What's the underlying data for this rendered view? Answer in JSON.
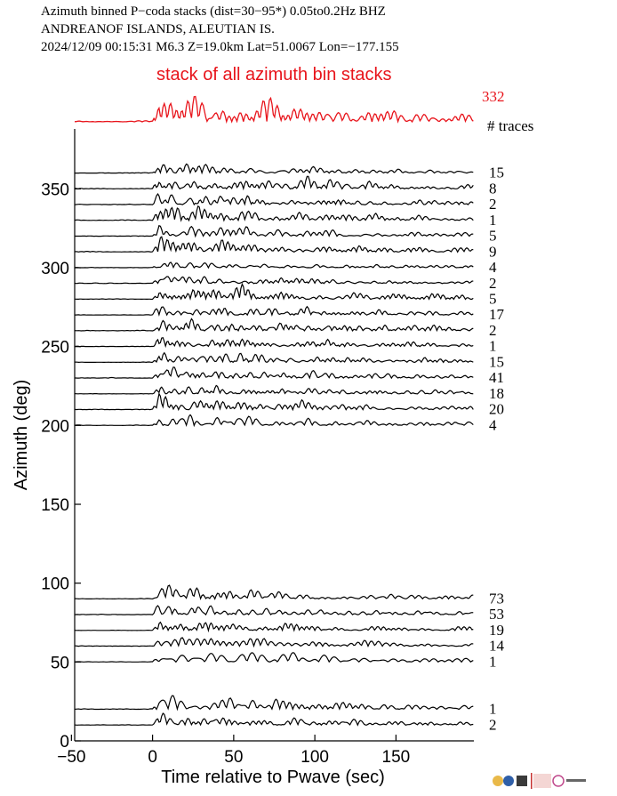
{
  "header": {
    "line1": "Azimuth binned P−coda stacks (dist=30−95*)  0.05to0.2Hz  BHZ",
    "line2": "ANDREANOF ISLANDS, ALEUTIAN IS.",
    "line3": "2024/12/09  00:15:31  M6.3  Z=19.0km Lat=51.0067 Lon=−177.155"
  },
  "colors": {
    "stack": "#e8141b",
    "trace": "#000000",
    "axis": "#000000"
  },
  "chart_data": {
    "type": "line",
    "xlabel": "Time relative to Pwave (sec)",
    "ylabel": "Azimuth (deg)",
    "xlim": [
      -48,
      198
    ],
    "ylim": [
      0,
      388
    ],
    "xticks": [
      -50,
      0,
      50,
      100,
      150
    ],
    "xtick_labels": [
      "−50",
      "0",
      "50",
      "100",
      "150"
    ],
    "yticks": [
      0,
      50,
      100,
      150,
      200,
      250,
      300,
      350
    ],
    "ytick_labels": [
      "0",
      "50",
      "100",
      "150",
      "200",
      "250",
      "300",
      "350"
    ],
    "stack": {
      "title": "stack of all azimuth bin stacks",
      "count": "332",
      "count_label": "# traces"
    },
    "traces": [
      {
        "azimuth": 360,
        "count": "15"
      },
      {
        "azimuth": 350,
        "count": "8"
      },
      {
        "azimuth": 340,
        "count": "2"
      },
      {
        "azimuth": 330,
        "count": "1"
      },
      {
        "azimuth": 320,
        "count": "5"
      },
      {
        "azimuth": 310,
        "count": "9"
      },
      {
        "azimuth": 300,
        "count": "4"
      },
      {
        "azimuth": 290,
        "count": "2"
      },
      {
        "azimuth": 280,
        "count": "5"
      },
      {
        "azimuth": 270,
        "count": "17"
      },
      {
        "azimuth": 260,
        "count": "2"
      },
      {
        "azimuth": 250,
        "count": "1"
      },
      {
        "azimuth": 240,
        "count": "15"
      },
      {
        "azimuth": 230,
        "count": "41"
      },
      {
        "azimuth": 220,
        "count": "18"
      },
      {
        "azimuth": 210,
        "count": "20"
      },
      {
        "azimuth": 200,
        "count": "4"
      },
      {
        "azimuth": 90,
        "count": "73"
      },
      {
        "azimuth": 80,
        "count": "53"
      },
      {
        "azimuth": 70,
        "count": "19"
      },
      {
        "azimuth": 60,
        "count": "14"
      },
      {
        "azimuth": 50,
        "count": "1"
      },
      {
        "azimuth": 20,
        "count": "1"
      },
      {
        "azimuth": 10,
        "count": "2"
      }
    ]
  }
}
